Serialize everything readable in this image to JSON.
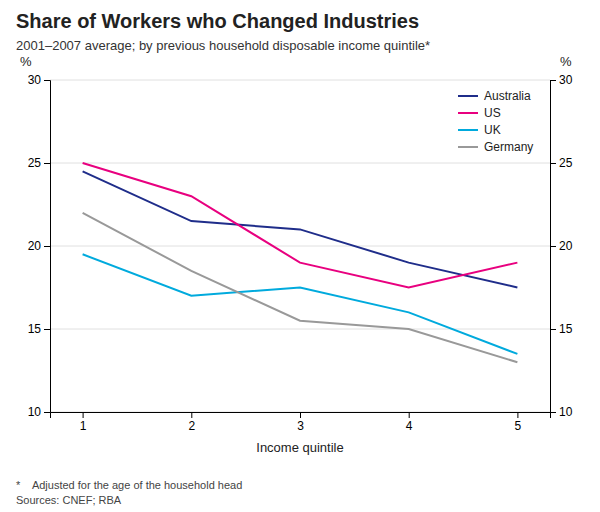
{
  "chart_data": {
    "type": "line",
    "title": "Share of Workers who Changed Industries",
    "subtitle": "2001–2007 average; by previous household disposable income quintile*",
    "xlabel": "Income quintile",
    "ylabel": "%",
    "y2label": "%",
    "footnote": "*    Adjusted for the age of the household head\nSources: CNEF; RBA",
    "x": [
      1,
      2,
      3,
      4,
      5
    ],
    "series": [
      {
        "name": "Australia",
        "color": "#1f2d8a",
        "values": [
          24.5,
          21.5,
          21.0,
          19.0,
          17.5
        ]
      },
      {
        "name": "US",
        "color": "#e8007f",
        "values": [
          25.0,
          23.0,
          19.0,
          17.5,
          19.0
        ]
      },
      {
        "name": "UK",
        "color": "#00aadd",
        "values": [
          19.5,
          17.0,
          17.5,
          16.0,
          13.5
        ]
      },
      {
        "name": "Germany",
        "color": "#999999",
        "values": [
          22.0,
          18.5,
          15.5,
          15.0,
          13.0
        ]
      }
    ],
    "xlim": [
      0.7,
      5.3
    ],
    "xticks": [
      1,
      2,
      3,
      4,
      5
    ],
    "ylim": [
      10,
      30
    ],
    "yticks": [
      10,
      15,
      20,
      25,
      30
    ],
    "y2lim": [
      10,
      30
    ],
    "y2ticks": [
      10,
      15,
      20,
      25,
      30
    ],
    "grid": true,
    "legend": "upper right"
  }
}
